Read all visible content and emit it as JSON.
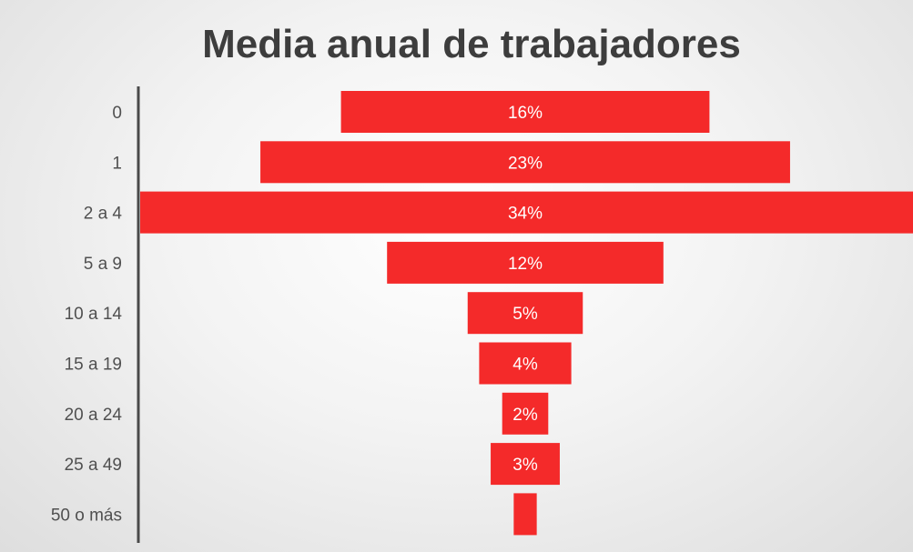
{
  "chart_data": {
    "type": "bar",
    "orientation": "horizontal-funnel",
    "title": "Media anual de trabajadores",
    "categories": [
      "0",
      "1",
      "2 a 4",
      "5 a 9",
      "10 a 14",
      "15 a 19",
      "20 a 24",
      "25 a 49",
      "50 o más"
    ],
    "values": [
      16,
      23,
      34,
      12,
      5,
      4,
      2,
      3,
      1
    ],
    "data_labels": [
      "16%",
      "23%",
      "34%",
      "12%",
      "5%",
      "4%",
      "2%",
      "3%",
      ""
    ],
    "unit": "%",
    "bar_color": "#f42a2a",
    "grid": false,
    "legend": "none"
  }
}
